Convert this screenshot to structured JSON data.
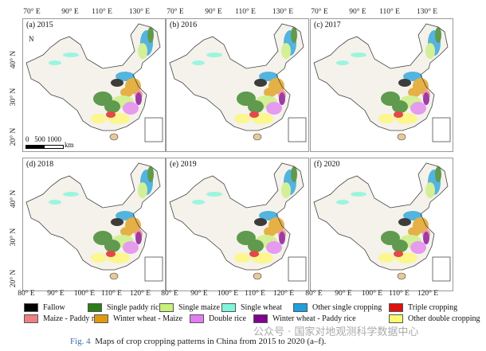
{
  "figure": {
    "caption_label": "Fig. 4",
    "caption_text": "Maps of crop cropping patterns in China from 2015 to 2020 (a–f).",
    "watermark": "公众号 · 国家对地观测科学数据中心"
  },
  "panels": [
    {
      "label": "(a) 2015"
    },
    {
      "label": "(b) 2016"
    },
    {
      "label": "(c) 2017"
    },
    {
      "label": "(d) 2018"
    },
    {
      "label": "(e) 2019"
    },
    {
      "label": "(f) 2020"
    }
  ],
  "axes": {
    "top_lon": [
      "70° E",
      "90° E",
      "110° E",
      "130° E"
    ],
    "bottom_lon": [
      "80° E",
      "90° E",
      "100° E",
      "110° E",
      "120° E"
    ],
    "lat": [
      "40° N",
      "30° N",
      "20° N"
    ]
  },
  "scale_bar": {
    "ticks": "0   500 1000",
    "unit": "km"
  },
  "north_arrow": "N",
  "legend": [
    {
      "label": "Fallow",
      "color": "#000000"
    },
    {
      "label": "Single paddy rice",
      "color": "#2e7d1a"
    },
    {
      "label": "Single maize",
      "color": "#c8f07a"
    },
    {
      "label": "Single wheat",
      "color": "#7ff5dc"
    },
    {
      "label": "Other single cropping",
      "color": "#1ea0dc"
    },
    {
      "label": "Triple cropping",
      "color": "#e01010"
    },
    {
      "label": "Maize - Paddy rice",
      "color": "#f08080"
    },
    {
      "label": "Winter wheat - Maize",
      "color": "#e09a10"
    },
    {
      "label": "Double rice",
      "color": "#e07ef0"
    },
    {
      "label": "Winter wheat - Paddy rice",
      "color": "#800090"
    },
    {
      "label": "Other double cropping",
      "color": "#fff870"
    }
  ]
}
